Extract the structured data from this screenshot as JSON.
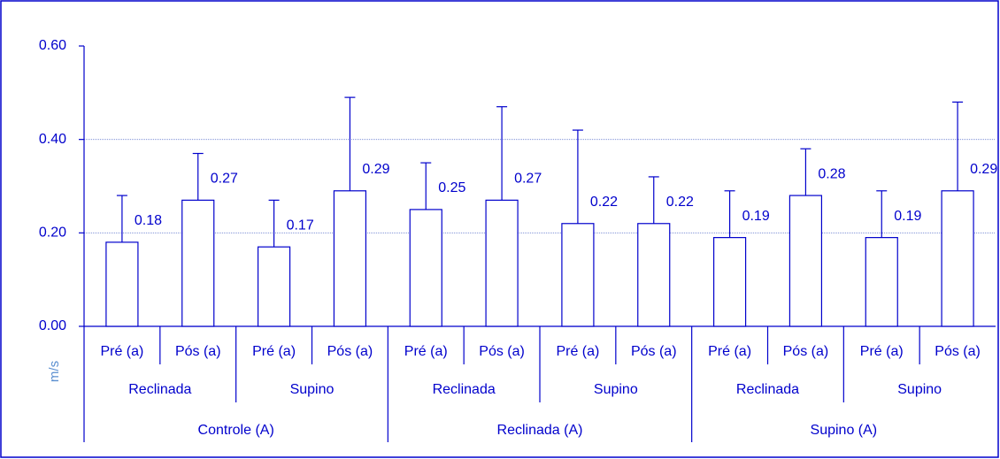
{
  "chart_data": {
    "type": "bar",
    "y_label": "m/s",
    "categories": [
      "Pré (a)",
      "Pós (a)",
      "Pré (a)",
      "Pós (a)",
      "Pré (a)",
      "Pós (a)",
      "Pré (a)",
      "Pós (a)",
      "Pré (a)",
      "Pós (a)",
      "Pré (a)",
      "Pós (a)"
    ],
    "subgroups": [
      "Reclinada",
      "Supino",
      "Reclinada",
      "Supino",
      "Reclinada",
      "Supino"
    ],
    "groups": [
      "Controle (A)",
      "Reclinada (A)",
      "Supino (A)"
    ],
    "values": [
      0.18,
      0.27,
      0.17,
      0.29,
      0.25,
      0.27,
      0.22,
      0.22,
      0.19,
      0.28,
      0.19,
      0.29
    ],
    "errors": [
      0.1,
      0.1,
      0.1,
      0.2,
      0.1,
      0.2,
      0.2,
      0.1,
      0.1,
      0.1,
      0.1,
      0.19
    ],
    "color": "#0000cc",
    "ylim": [
      0,
      0.6
    ],
    "yticks": [
      {
        "value": 0,
        "label": "0.00"
      },
      {
        "value": 0.2,
        "label": "0.20"
      },
      {
        "value": 0.4,
        "label": "0.40"
      },
      {
        "value": 0.6,
        "label": "0.60"
      }
    ],
    "grid": true
  }
}
